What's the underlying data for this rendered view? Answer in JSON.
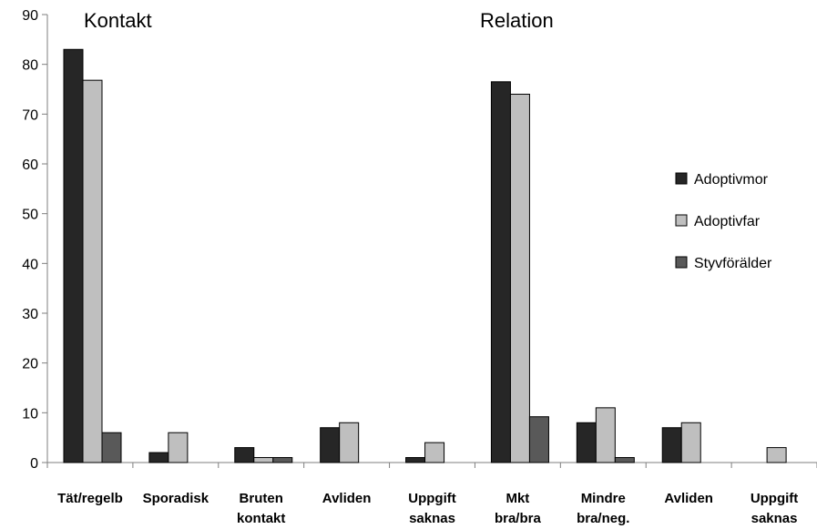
{
  "chart_data": {
    "type": "bar",
    "annotations": [
      "Kontakt",
      "Relation"
    ],
    "categories": [
      [
        "Tät/regelb"
      ],
      [
        "Sporadisk"
      ],
      [
        "Bruten",
        "kontakt"
      ],
      [
        "Avliden"
      ],
      [
        "Uppgift",
        "saknas"
      ],
      [
        "Mkt",
        "bra/bra"
      ],
      [
        "Mindre",
        "bra/neg."
      ],
      [
        "Avliden"
      ],
      [
        "Uppgift",
        "saknas"
      ]
    ],
    "series": [
      {
        "name": "Adoptivmor",
        "color": "#262626",
        "values": [
          83,
          2,
          3,
          7,
          1,
          76.5,
          8,
          7,
          0
        ]
      },
      {
        "name": "Adoptivfar",
        "color": "#bfbfbf",
        "values": [
          76.8,
          6,
          1,
          8,
          4,
          74,
          11,
          8,
          3
        ]
      },
      {
        "name": "Styvförälder",
        "color": "#595959",
        "values": [
          6,
          0,
          1,
          0,
          0,
          9.2,
          1,
          0,
          0
        ]
      }
    ],
    "yticks": [
      0,
      10,
      20,
      30,
      40,
      50,
      60,
      70,
      80,
      90
    ],
    "ylim": [
      0,
      90
    ],
    "legend_position": "right",
    "grid": false
  }
}
